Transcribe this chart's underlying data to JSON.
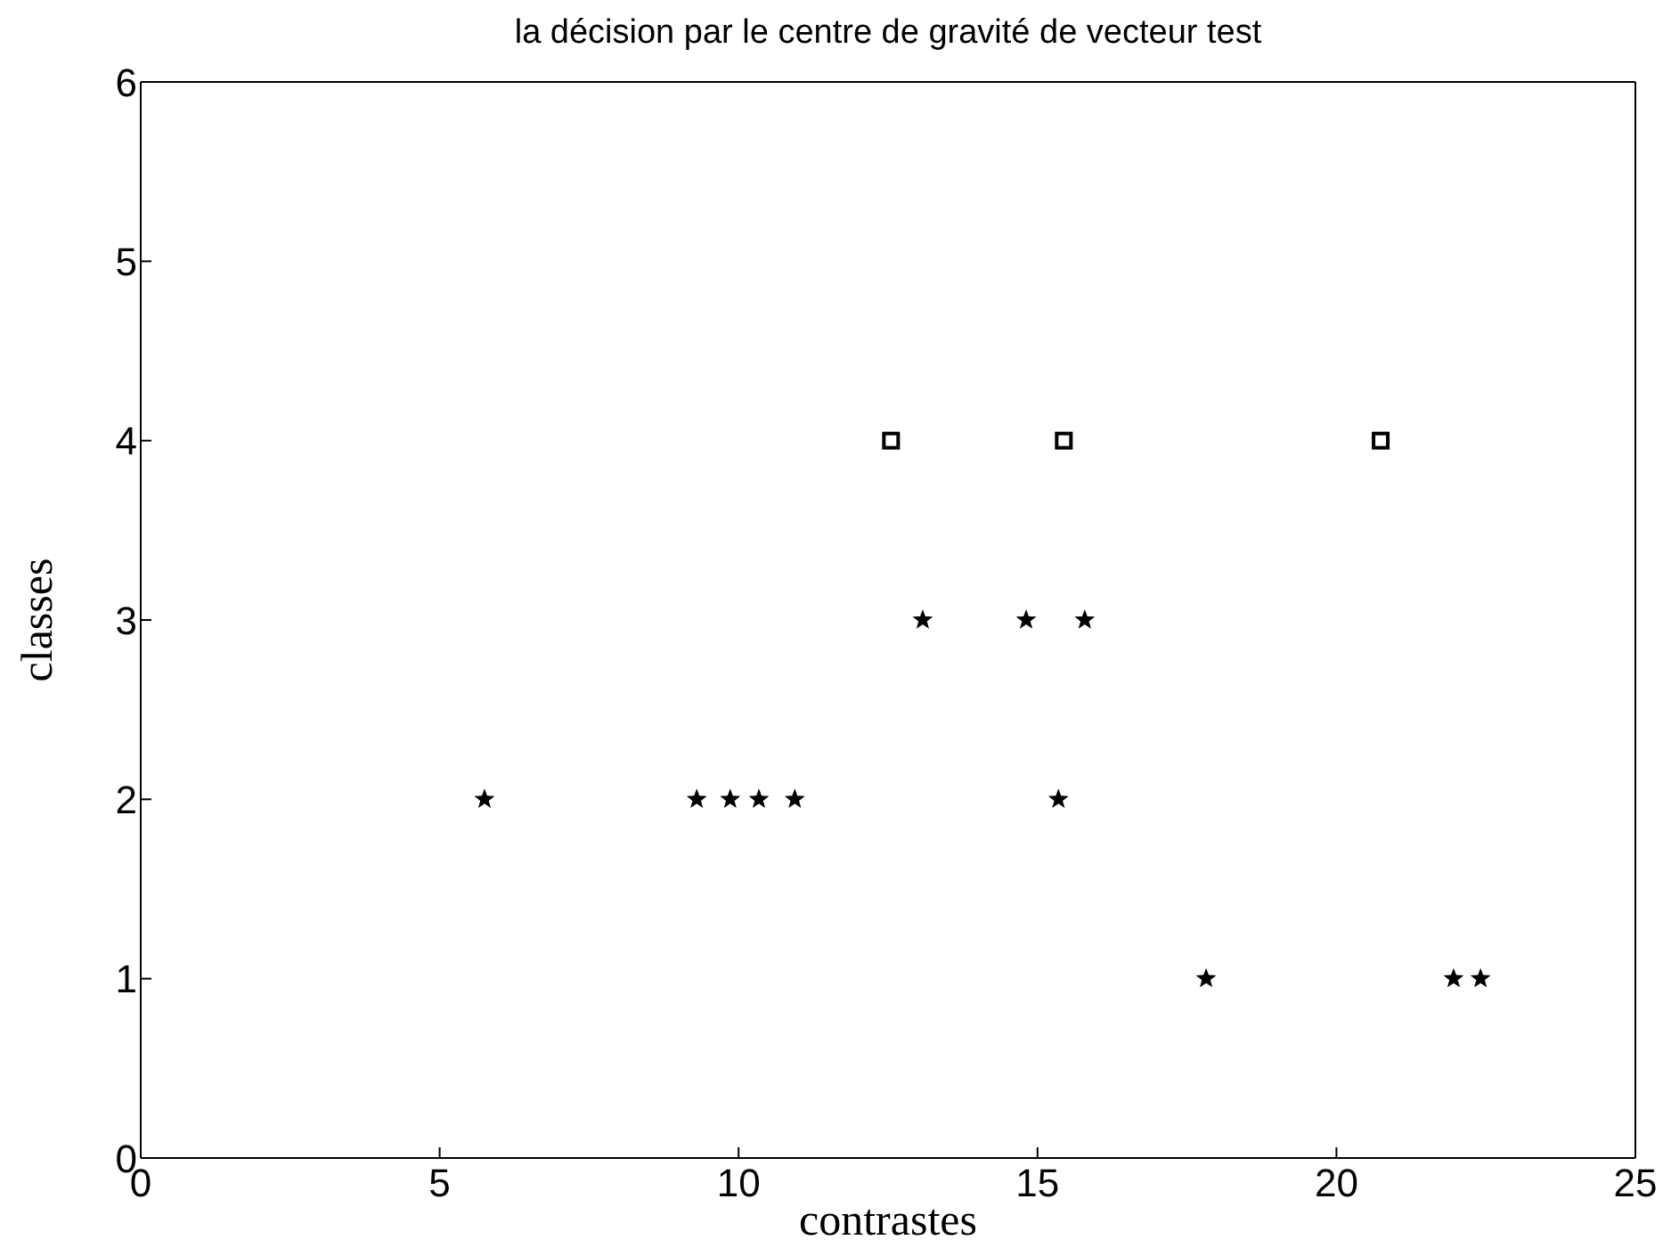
{
  "chart_data": {
    "type": "scatter",
    "title": "la décision par le centre de gravité de vecteur test",
    "xlabel": "contrastes",
    "ylabel": "classes",
    "xlim": [
      0,
      25
    ],
    "xticks": [
      0,
      5,
      10,
      15,
      20,
      25
    ],
    "ylim": [
      0,
      6
    ],
    "yticks": [
      0,
      1,
      2,
      3,
      4,
      5,
      6
    ],
    "series": [
      {
        "color": "#000000",
        "marker": "star",
        "x": [
          5.75,
          9.3,
          9.86,
          10.34,
          10.94,
          15.35,
          13.08,
          14.81,
          15.79,
          17.82,
          21.96,
          22.41
        ],
        "values": [
          2,
          2,
          2,
          2,
          2,
          2,
          3,
          3,
          3,
          1,
          1,
          1
        ]
      },
      {
        "color": "#000000",
        "marker": "square",
        "x": [
          12.55,
          15.44,
          20.74
        ],
        "values": [
          4,
          4,
          4
        ]
      }
    ]
  }
}
